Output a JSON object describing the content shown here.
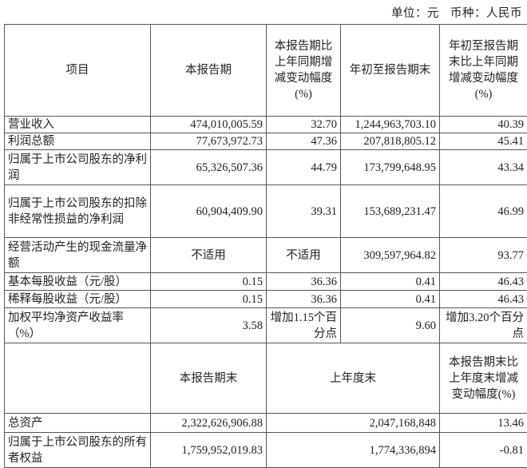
{
  "unit_label": "单位：元",
  "currency_label": "币种：人民币",
  "header": [
    "项目",
    "本报告期",
    "本报告期比上年同期增减变动幅度(%)",
    "年初至报告期末",
    "年初至报告期末比上年同期增减变动幅度(%)"
  ],
  "rows": [
    {
      "item": "营业收入",
      "current": "474,010,005.59",
      "current_change": "32.70",
      "ytd": "1,244,963,703.10",
      "ytd_change": "40.39"
    },
    {
      "item": "利润总额",
      "current": "77,673,972.73",
      "current_change": "47.36",
      "ytd": "207,818,805.12",
      "ytd_change": "45.41"
    },
    {
      "item": "归属于上市公司股东的净利润",
      "current": "65,326,507.36",
      "current_change": "44.79",
      "ytd": "173,799,648.95",
      "ytd_change": "43.34"
    },
    {
      "item": "归属于上市公司股东的扣除非经常性损益的净利润",
      "current": "60,904,409.90",
      "current_change": "39.31",
      "ytd": "153,689,231.47",
      "ytd_change": "46.99"
    },
    {
      "item": "经营活动产生的现金流量净额",
      "current": "不适用",
      "current_change": "不适用",
      "ytd": "309,597,964.82",
      "ytd_change": "93.77"
    },
    {
      "item": "基本每股收益（元/股）",
      "current": "0.15",
      "current_change": "36.36",
      "ytd": "0.41",
      "ytd_change": "46.43"
    },
    {
      "item": "稀释每股收益（元/股）",
      "current": "0.15",
      "current_change": "36.36",
      "ytd": "0.41",
      "ytd_change": "46.43"
    },
    {
      "item": "加权平均净资产收益率（%）",
      "current": "3.58",
      "current_change": "增加1.15个百分点",
      "ytd": "9.60",
      "ytd_change": "增加3.20个百分点"
    }
  ],
  "header2": [
    "",
    "本报告期末",
    "上年度末",
    "本报告期末比上年度末增减变动幅度(%)"
  ],
  "rows2": [
    {
      "item": "总资产",
      "period_end": "2,322,626,906.88",
      "last_year_end": "2,047,168,848",
      "change": "13.46"
    },
    {
      "item": "归属于上市公司股东的所有者权益",
      "period_end": "1,759,952,019.83",
      "last_year_end": "1,774,336,894",
      "change": "-0.81"
    }
  ]
}
